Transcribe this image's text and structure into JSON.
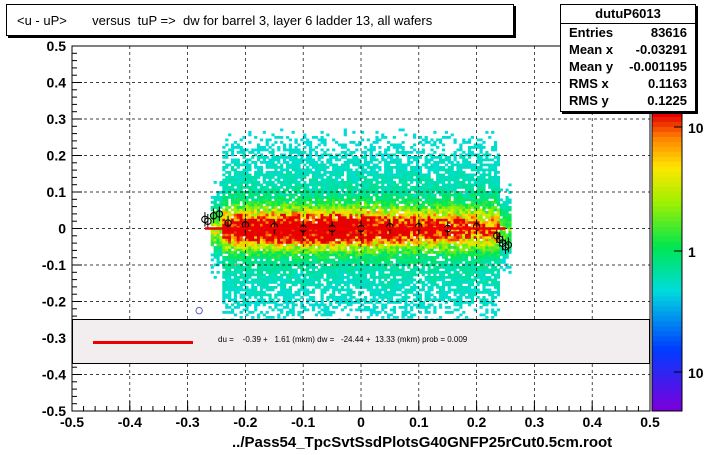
{
  "title": "<u - uP>       versus  tuP =>  dw for barrel 3, layer 6 ladder 13, all wafers",
  "stats": {
    "name": "dutuP6013",
    "rows": [
      {
        "key": "Entries",
        "value": "83616"
      },
      {
        "key": "Mean x",
        "value": "-0.03291"
      },
      {
        "key": "Mean y",
        "value": "-0.001195"
      },
      {
        "key": "RMS x",
        "value": "0.1163"
      },
      {
        "key": "RMS y",
        "value": "0.1225"
      }
    ]
  },
  "fit_text": "du =    -0.39 +   1.61 (mkm) dw =   -24.44 +  13.33 (mkm) prob = 0.009",
  "colors": {
    "fit_line": "#ee0000",
    "fit_box_bg": "#f2eef0"
  },
  "chart_data": {
    "type": "heatmap",
    "title": "<u - uP>       versus  tuP =>  dw for barrel 3, layer 6 ladder 13, all wafers",
    "xlabel": "../Pass54_TpcSvtSsdPlotsG40GNFP25rCut0.5cm.root",
    "ylabel": "",
    "xlim": [
      -0.5,
      0.5
    ],
    "ylim": [
      -0.5,
      0.5
    ],
    "x_ticks": [
      "-0.5",
      "-0.4",
      "-0.3",
      "-0.2",
      "-0.1",
      "0",
      "0.1",
      "0.2",
      "0.3",
      "0.4",
      "0.5"
    ],
    "y_ticks": [
      "-0.5",
      "-0.4",
      "-0.3",
      "-0.2",
      "-0.1",
      "0",
      "0.1",
      "0.2",
      "0.3",
      "0.4",
      "0.5"
    ],
    "z_ticks": [
      "10",
      "1",
      "10"
    ],
    "z_scale": "log",
    "grid": true,
    "data_extent_x": [
      -0.26,
      0.26
    ],
    "profile_points": {
      "x": [
        -0.27,
        -0.265,
        -0.255,
        -0.245,
        -0.23,
        -0.2,
        -0.15,
        -0.1,
        -0.05,
        0,
        0.05,
        0.1,
        0.15,
        0.2,
        0.235,
        0.24,
        0.245,
        0.25,
        0.255
      ],
      "y": [
        0.025,
        0.02,
        0.035,
        0.04,
        0.015,
        0.01,
        0.005,
        0.0,
        0.0,
        0.0,
        0.005,
        0.005,
        0.0,
        0.005,
        -0.02,
        -0.03,
        -0.04,
        -0.05,
        -0.045
      ]
    },
    "outlier_point": {
      "x": -0.28,
      "y": -0.225
    },
    "fit_line": {
      "x": [
        -0.27,
        0.25
      ],
      "y": [
        0.0,
        0.0
      ]
    }
  }
}
